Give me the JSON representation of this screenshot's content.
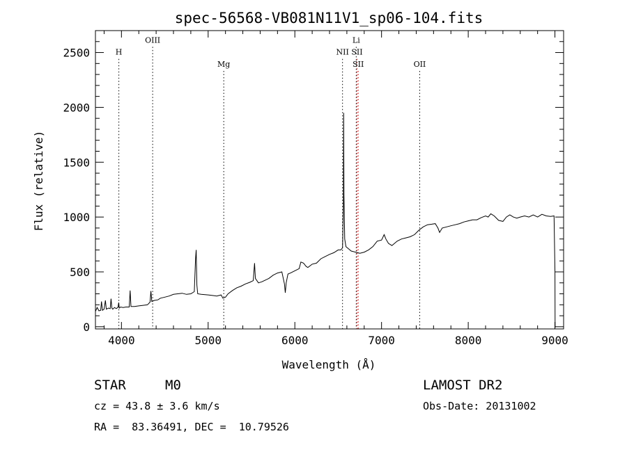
{
  "chart_data": {
    "type": "line",
    "title": "spec-56568-VB081N11V1_sp06-104.fits",
    "xlabel": "Wavelength (Å)",
    "ylabel": "Flux (relative)",
    "xlim": [
      3700,
      9100
    ],
    "ylim": [
      -20,
      2700
    ],
    "xticks": [
      4000,
      5000,
      6000,
      7000,
      8000,
      9000
    ],
    "yticks": [
      0,
      500,
      1000,
      1500,
      2000,
      2500
    ],
    "grid": false,
    "line_color": "#000000",
    "series": [
      {
        "points": [
          [
            3700,
            140
          ],
          [
            3720,
            175
          ],
          [
            3740,
            145
          ],
          [
            3760,
            150
          ],
          [
            3770,
            230
          ],
          [
            3780,
            150
          ],
          [
            3800,
            160
          ],
          [
            3815,
            240
          ],
          [
            3825,
            160
          ],
          [
            3850,
            170
          ],
          [
            3870,
            165
          ],
          [
            3880,
            255
          ],
          [
            3890,
            170
          ],
          [
            3900,
            160
          ],
          [
            3920,
            175
          ],
          [
            3940,
            165
          ],
          [
            3960,
            178
          ],
          [
            3968,
            220
          ],
          [
            3975,
            170
          ],
          [
            3990,
            180
          ],
          [
            4020,
            175
          ],
          [
            4050,
            180
          ],
          [
            4090,
            180
          ],
          [
            4100,
            330
          ],
          [
            4110,
            185
          ],
          [
            4150,
            185
          ],
          [
            4200,
            190
          ],
          [
            4250,
            195
          ],
          [
            4300,
            200
          ],
          [
            4330,
            225
          ],
          [
            4340,
            325
          ],
          [
            4350,
            230
          ],
          [
            4380,
            240
          ],
          [
            4420,
            245
          ],
          [
            4450,
            260
          ],
          [
            4500,
            270
          ],
          [
            4550,
            280
          ],
          [
            4600,
            295
          ],
          [
            4650,
            300
          ],
          [
            4700,
            305
          ],
          [
            4750,
            295
          ],
          [
            4800,
            300
          ],
          [
            4840,
            320
          ],
          [
            4855,
            620
          ],
          [
            4862,
            700
          ],
          [
            4870,
            380
          ],
          [
            4880,
            300
          ],
          [
            4920,
            295
          ],
          [
            5000,
            290
          ],
          [
            5050,
            285
          ],
          [
            5100,
            280
          ],
          [
            5150,
            290
          ],
          [
            5170,
            260
          ],
          [
            5200,
            270
          ],
          [
            5230,
            300
          ],
          [
            5280,
            330
          ],
          [
            5330,
            355
          ],
          [
            5380,
            370
          ],
          [
            5430,
            390
          ],
          [
            5480,
            405
          ],
          [
            5520,
            420
          ],
          [
            5530,
            520
          ],
          [
            5535,
            580
          ],
          [
            5545,
            440
          ],
          [
            5580,
            400
          ],
          [
            5620,
            410
          ],
          [
            5700,
            440
          ],
          [
            5750,
            470
          ],
          [
            5800,
            490
          ],
          [
            5850,
            500
          ],
          [
            5880,
            390
          ],
          [
            5890,
            310
          ],
          [
            5900,
            400
          ],
          [
            5920,
            480
          ],
          [
            5950,
            490
          ],
          [
            6000,
            510
          ],
          [
            6050,
            530
          ],
          [
            6070,
            590
          ],
          [
            6100,
            580
          ],
          [
            6130,
            550
          ],
          [
            6150,
            540
          ],
          [
            6200,
            570
          ],
          [
            6250,
            580
          ],
          [
            6300,
            620
          ],
          [
            6350,
            640
          ],
          [
            6400,
            660
          ],
          [
            6450,
            675
          ],
          [
            6500,
            700
          ],
          [
            6530,
            700
          ],
          [
            6550,
            720
          ],
          [
            6560,
            1100
          ],
          [
            6563,
            1950
          ],
          [
            6566,
            1200
          ],
          [
            6575,
            800
          ],
          [
            6590,
            730
          ],
          [
            6620,
            710
          ],
          [
            6650,
            690
          ],
          [
            6700,
            680
          ],
          [
            6750,
            670
          ],
          [
            6800,
            680
          ],
          [
            6850,
            700
          ],
          [
            6900,
            730
          ],
          [
            6950,
            780
          ],
          [
            7000,
            790
          ],
          [
            7030,
            840
          ],
          [
            7050,
            800
          ],
          [
            7080,
            760
          ],
          [
            7120,
            740
          ],
          [
            7180,
            780
          ],
          [
            7230,
            800
          ],
          [
            7280,
            810
          ],
          [
            7330,
            820
          ],
          [
            7380,
            840
          ],
          [
            7430,
            880
          ],
          [
            7480,
            910
          ],
          [
            7530,
            930
          ],
          [
            7580,
            935
          ],
          [
            7620,
            940
          ],
          [
            7650,
            900
          ],
          [
            7670,
            860
          ],
          [
            7700,
            900
          ],
          [
            7750,
            910
          ],
          [
            7800,
            920
          ],
          [
            7850,
            930
          ],
          [
            7900,
            940
          ],
          [
            7950,
            955
          ],
          [
            8000,
            965
          ],
          [
            8050,
            975
          ],
          [
            8100,
            975
          ],
          [
            8150,
            995
          ],
          [
            8200,
            1010
          ],
          [
            8230,
            1000
          ],
          [
            8260,
            1030
          ],
          [
            8300,
            1010
          ],
          [
            8350,
            970
          ],
          [
            8400,
            960
          ],
          [
            8440,
            1000
          ],
          [
            8480,
            1020
          ],
          [
            8520,
            1000
          ],
          [
            8560,
            990
          ],
          [
            8600,
            1000
          ],
          [
            8650,
            1010
          ],
          [
            8700,
            1000
          ],
          [
            8750,
            1020
          ],
          [
            8800,
            1000
          ],
          [
            8850,
            1025
          ],
          [
            8900,
            1010
          ],
          [
            8950,
            1005
          ],
          [
            8990,
            1010
          ],
          [
            9000,
            500
          ],
          [
            9002,
            -10
          ]
        ]
      }
    ],
    "line_markers": [
      {
        "label": "H",
        "x": 3970,
        "label_y": 2480,
        "color": "#000000"
      },
      {
        "label": "OIII",
        "x": 4360,
        "label_y": 2590,
        "color": "#000000"
      },
      {
        "label": "Mg",
        "x": 5180,
        "label_y": 2370,
        "color": "#000000"
      },
      {
        "label": "NII",
        "x": 6550,
        "label_y": 2480,
        "color": "#000000"
      },
      {
        "label": "Li",
        "x": 6708,
        "label_y": 2590,
        "color": "#000000"
      },
      {
        "label": "SII",
        "x": 6717,
        "label_y": 2480,
        "color": "#cc0000"
      },
      {
        "label": "SII",
        "x": 6731,
        "label_y": 2370,
        "color": "#cc0000"
      },
      {
        "label": "OII",
        "x": 7440,
        "label_y": 2370,
        "color": "#000000"
      }
    ]
  },
  "info": {
    "object_class": "STAR",
    "subclass": "M0",
    "survey": "LAMOST DR2",
    "redshift": "cz = 43.8 ± 3.6 km/s",
    "obs_date": "Obs-Date: 20131002",
    "coords": "RA =  83.36491, DEC =  10.79526"
  }
}
